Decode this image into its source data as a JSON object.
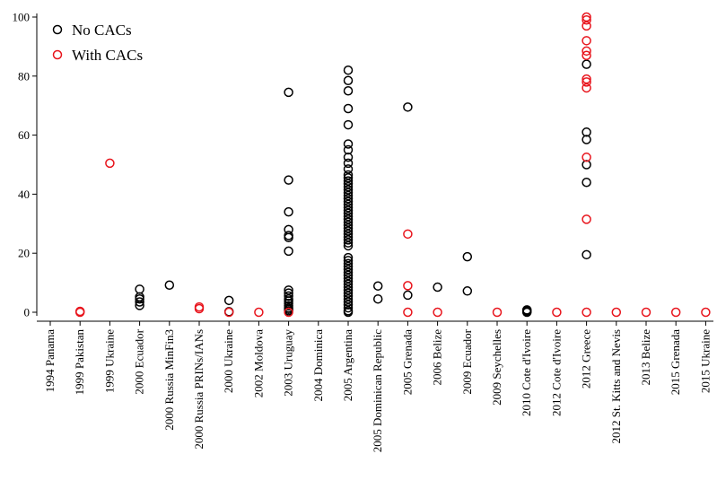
{
  "chart_data": {
    "type": "scatter",
    "title": "",
    "xlabel": "",
    "ylabel": "",
    "ylim": [
      0,
      100
    ],
    "yticks": [
      0,
      20,
      40,
      60,
      80,
      100
    ],
    "grid": false,
    "legend_position": "top-left",
    "categories": [
      "1994 Panama",
      "1999 Pakistan",
      "1999 Ukraine",
      "2000 Ecuador",
      "2000 Russia MinFin3",
      "2000 Russia PRINs/IANs",
      "2000 Ukraine",
      "2002 Moldova",
      "2003 Uruguay",
      "2004 Dominica",
      "2005 Argentina",
      "2005 Dominican Republic",
      "2005 Grenada",
      "2006 Belize",
      "2009 Ecuador",
      "2009 Seychelles",
      "2010 Cote d'Ivoire",
      "2012 Cote d'Ivoire",
      "2012 Greece",
      "2012 St. Kitts and Nevis",
      "2013 Belize",
      "2015 Grenada",
      "2015 Ukraine"
    ],
    "colors": {
      "no_cacs": "#000000",
      "with_cacs": "#e8141c"
    },
    "series": [
      {
        "name": "No CACs",
        "points": [
          {
            "x": "2000 Ecuador",
            "y": 2.3
          },
          {
            "x": "2000 Ecuador",
            "y": 3.5
          },
          {
            "x": "2000 Ecuador",
            "y": 4.5
          },
          {
            "x": "2000 Ecuador",
            "y": 5.2
          },
          {
            "x": "2000 Ecuador",
            "y": 7.8
          },
          {
            "x": "2000 Russia MinFin3",
            "y": 9.2
          },
          {
            "x": "2000 Ukraine",
            "y": 4.0
          },
          {
            "x": "2000 Ukraine",
            "y": 0.2
          },
          {
            "x": "2003 Uruguay",
            "y": 74.5
          },
          {
            "x": "2003 Uruguay",
            "y": 44.8
          },
          {
            "x": "2003 Uruguay",
            "y": 34.0
          },
          {
            "x": "2003 Uruguay",
            "y": 28.0
          },
          {
            "x": "2003 Uruguay",
            "y": 26.0
          },
          {
            "x": "2003 Uruguay",
            "y": 25.3
          },
          {
            "x": "2003 Uruguay",
            "y": 20.7
          },
          {
            "x": "2003 Uruguay",
            "y": 7.5
          },
          {
            "x": "2003 Uruguay",
            "y": 6.5
          },
          {
            "x": "2003 Uruguay",
            "y": 5.5
          },
          {
            "x": "2003 Uruguay",
            "y": 4.5
          },
          {
            "x": "2003 Uruguay",
            "y": 3.8
          },
          {
            "x": "2003 Uruguay",
            "y": 3.0
          },
          {
            "x": "2003 Uruguay",
            "y": 2.2
          },
          {
            "x": "2003 Uruguay",
            "y": 1.5
          },
          {
            "x": "2003 Uruguay",
            "y": 1.0
          },
          {
            "x": "2003 Uruguay",
            "y": 0.5
          },
          {
            "x": "2005 Argentina",
            "y": 82.0
          },
          {
            "x": "2005 Argentina",
            "y": 78.5
          },
          {
            "x": "2005 Argentina",
            "y": 75.0
          },
          {
            "x": "2005 Argentina",
            "y": 69.0
          },
          {
            "x": "2005 Argentina",
            "y": 63.5
          },
          {
            "x": "2005 Argentina",
            "y": 57.0
          },
          {
            "x": "2005 Argentina",
            "y": 55.0
          },
          {
            "x": "2005 Argentina",
            "y": 52.5
          },
          {
            "x": "2005 Argentina",
            "y": 50.5
          },
          {
            "x": "2005 Argentina",
            "y": 48.5
          },
          {
            "x": "2005 Argentina",
            "y": 46.5
          },
          {
            "x": "2005 Argentina",
            "y": 45.5
          },
          {
            "x": "2005 Argentina",
            "y": 44.5
          },
          {
            "x": "2005 Argentina",
            "y": 43.5
          },
          {
            "x": "2005 Argentina",
            "y": 42.5
          },
          {
            "x": "2005 Argentina",
            "y": 41.5
          },
          {
            "x": "2005 Argentina",
            "y": 40.5
          },
          {
            "x": "2005 Argentina",
            "y": 39.5
          },
          {
            "x": "2005 Argentina",
            "y": 38.5
          },
          {
            "x": "2005 Argentina",
            "y": 37.5
          },
          {
            "x": "2005 Argentina",
            "y": 36.5
          },
          {
            "x": "2005 Argentina",
            "y": 35.5
          },
          {
            "x": "2005 Argentina",
            "y": 34.5
          },
          {
            "x": "2005 Argentina",
            "y": 33.5
          },
          {
            "x": "2005 Argentina",
            "y": 32.5
          },
          {
            "x": "2005 Argentina",
            "y": 31.5
          },
          {
            "x": "2005 Argentina",
            "y": 30.5
          },
          {
            "x": "2005 Argentina",
            "y": 29.5
          },
          {
            "x": "2005 Argentina",
            "y": 28.5
          },
          {
            "x": "2005 Argentina",
            "y": 27.5
          },
          {
            "x": "2005 Argentina",
            "y": 26.5
          },
          {
            "x": "2005 Argentina",
            "y": 25.5
          },
          {
            "x": "2005 Argentina",
            "y": 24.5
          },
          {
            "x": "2005 Argentina",
            "y": 23.5
          },
          {
            "x": "2005 Argentina",
            "y": 22.5
          },
          {
            "x": "2005 Argentina",
            "y": 18.5
          },
          {
            "x": "2005 Argentina",
            "y": 17.5
          },
          {
            "x": "2005 Argentina",
            "y": 16.5
          },
          {
            "x": "2005 Argentina",
            "y": 15.5
          },
          {
            "x": "2005 Argentina",
            "y": 14.5
          },
          {
            "x": "2005 Argentina",
            "y": 13.5
          },
          {
            "x": "2005 Argentina",
            "y": 12.5
          },
          {
            "x": "2005 Argentina",
            "y": 11.5
          },
          {
            "x": "2005 Argentina",
            "y": 10.5
          },
          {
            "x": "2005 Argentina",
            "y": 9.5
          },
          {
            "x": "2005 Argentina",
            "y": 8.5
          },
          {
            "x": "2005 Argentina",
            "y": 7.5
          },
          {
            "x": "2005 Argentina",
            "y": 6.5
          },
          {
            "x": "2005 Argentina",
            "y": 5.5
          },
          {
            "x": "2005 Argentina",
            "y": 4.5
          },
          {
            "x": "2005 Argentina",
            "y": 3.5
          },
          {
            "x": "2005 Argentina",
            "y": 2.5
          },
          {
            "x": "2005 Argentina",
            "y": 1.5
          },
          {
            "x": "2005 Argentina",
            "y": 0.5
          },
          {
            "x": "2005 Argentina",
            "y": 0.0
          },
          {
            "x": "2005 Dominican Republic",
            "y": 8.9
          },
          {
            "x": "2005 Dominican Republic",
            "y": 4.5
          },
          {
            "x": "2005 Grenada",
            "y": 69.5
          },
          {
            "x": "2005 Grenada",
            "y": 5.8
          },
          {
            "x": "2006 Belize",
            "y": 8.5
          },
          {
            "x": "2009 Ecuador",
            "y": 18.8
          },
          {
            "x": "2009 Ecuador",
            "y": 7.2
          },
          {
            "x": "2010 Cote d'Ivoire",
            "y": 0.8
          },
          {
            "x": "2010 Cote d'Ivoire",
            "y": 0.5
          },
          {
            "x": "2010 Cote d'Ivoire",
            "y": 0.2
          },
          {
            "x": "2010 Cote d'Ivoire",
            "y": 0.0
          },
          {
            "x": "2012 Greece",
            "y": 84.0
          },
          {
            "x": "2012 Greece",
            "y": 61.0
          },
          {
            "x": "2012 Greece",
            "y": 58.5
          },
          {
            "x": "2012 Greece",
            "y": 50.0
          },
          {
            "x": "2012 Greece",
            "y": 44.0
          },
          {
            "x": "2012 Greece",
            "y": 19.5
          }
        ]
      },
      {
        "name": "With CACs",
        "points": [
          {
            "x": "1999 Pakistan",
            "y": 0.3
          },
          {
            "x": "1999 Pakistan",
            "y": 0.0
          },
          {
            "x": "1999 Ukraine",
            "y": 50.5
          },
          {
            "x": "2000 Russia PRINs/IANs",
            "y": 1.8
          },
          {
            "x": "2000 Russia PRINs/IANs",
            "y": 1.2
          },
          {
            "x": "2000 Ukraine",
            "y": 0.0
          },
          {
            "x": "2002 Moldova",
            "y": 0.0
          },
          {
            "x": "2003 Uruguay",
            "y": 0.0
          },
          {
            "x": "2005 Grenada",
            "y": 26.5
          },
          {
            "x": "2005 Grenada",
            "y": 9.0
          },
          {
            "x": "2005 Grenada",
            "y": 0.0
          },
          {
            "x": "2006 Belize",
            "y": 0.0
          },
          {
            "x": "2009 Seychelles",
            "y": 0.0
          },
          {
            "x": "2012 Cote d'Ivoire",
            "y": 0.0
          },
          {
            "x": "2012 Greece",
            "y": 100.0
          },
          {
            "x": "2012 Greece",
            "y": 99.0
          },
          {
            "x": "2012 Greece",
            "y": 97.0
          },
          {
            "x": "2012 Greece",
            "y": 92.0
          },
          {
            "x": "2012 Greece",
            "y": 88.5
          },
          {
            "x": "2012 Greece",
            "y": 87.0
          },
          {
            "x": "2012 Greece",
            "y": 79.0
          },
          {
            "x": "2012 Greece",
            "y": 78.0
          },
          {
            "x": "2012 Greece",
            "y": 76.0
          },
          {
            "x": "2012 Greece",
            "y": 52.5
          },
          {
            "x": "2012 Greece",
            "y": 31.5
          },
          {
            "x": "2012 Greece",
            "y": 0.0
          },
          {
            "x": "2012 St. Kitts and Nevis",
            "y": 0.0
          },
          {
            "x": "2013 Belize",
            "y": 0.0
          },
          {
            "x": "2015 Grenada",
            "y": 0.0
          },
          {
            "x": "2015 Ukraine",
            "y": 0.0
          }
        ]
      }
    ]
  }
}
